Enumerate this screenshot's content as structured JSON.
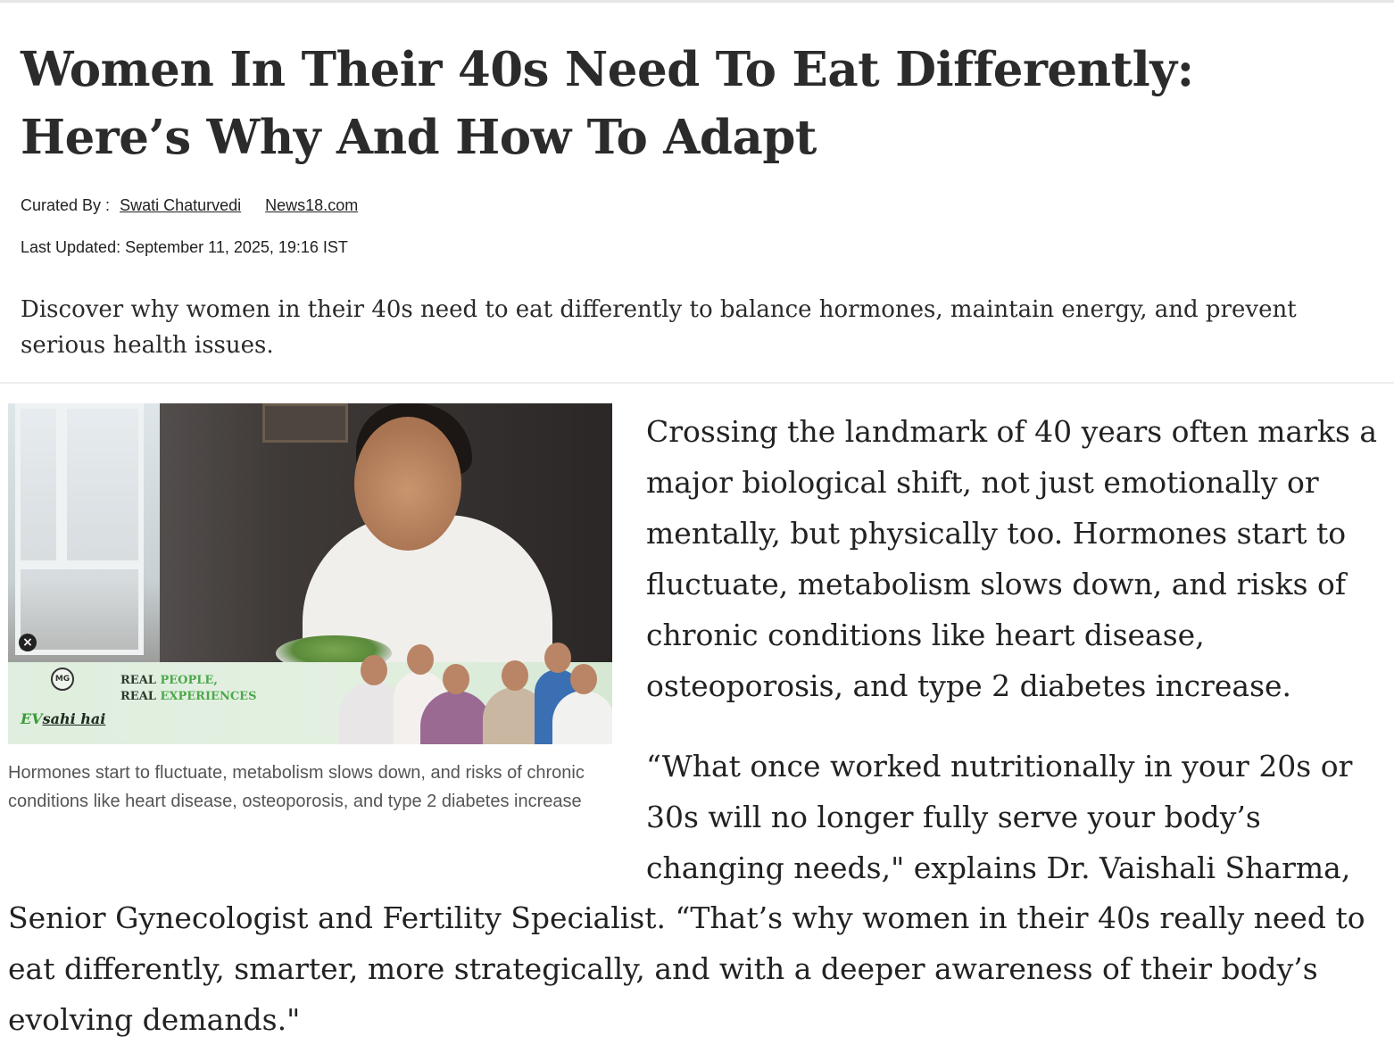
{
  "article": {
    "title_line1": "Women In Their 40s Need To Eat Differently:",
    "title_line2": "Here’s Why And How To Adapt",
    "curated_by_label": "Curated By :",
    "author": "Swati Chaturvedi",
    "source": "News18.com",
    "last_updated_label": "Last Updated:",
    "last_updated_value": "September 11, 2025, 19:16 IST",
    "summary": "Discover why women in their 40s need to eat differently to balance hormones, maintain energy, and prevent serious health issues."
  },
  "figure": {
    "caption": "Hormones start to fluctuate, metabolism slows down, and risks of chronic conditions like heart disease, osteoporosis, and type 2 diabetes increase",
    "ad": {
      "close_glyph": "×",
      "logo_text": "MG",
      "tagline_word1": "REAL",
      "tagline_word2": "PEOPLE,",
      "tagline_word3": "REAL",
      "tagline_word4": "EXPERIENCES",
      "brand_ev": "EV",
      "brand_rest": "sahi hai"
    }
  },
  "body": {
    "paragraph1_line1": "Crossing the landmark of 40 years often marks a",
    "paragraph1_line2": "major biological shift, not just emotionally or",
    "paragraph1_line3": "mentally, but physically too. Hormones start to",
    "paragraph1_line4": "fluctuate, metabolism slows down, and risks of",
    "paragraph1_line5": "chronic conditions like heart disease,",
    "paragraph1_line6": "osteoporosis, and type 2 diabetes increase.",
    "paragraph2_line1": "“What once worked nutritionally in your 20s or",
    "paragraph2_line2": "30s will no longer fully serve your body’s",
    "paragraph2_line3": "changing needs,\" explains Dr. Vaishali Sharma,",
    "paragraph2_line4": "Senior Gynecologist and Fertility Specialist. “That’s why women in their 40s really need to",
    "paragraph2_line5": "eat differently, smarter, more strategically, and with a deeper awareness of their body’s",
    "paragraph2_line6": "evolving demands.\""
  }
}
